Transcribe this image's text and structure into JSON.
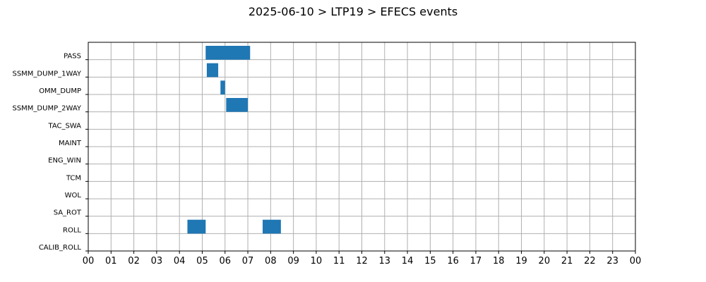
{
  "chart_data": {
    "type": "gantt",
    "title": "2025-06-10 > LTP19 > EFECS events",
    "categories": [
      "PASS",
      "SSMM_DUMP_1WAY",
      "OMM_DUMP",
      "SSMM_DUMP_2WAY",
      "TAC_SWA",
      "MAINT",
      "ENG_WIN",
      "TCM",
      "WOL",
      "SA_ROT",
      "ROLL",
      "CALIB_ROLL"
    ],
    "x_ticks": [
      "00",
      "01",
      "02",
      "03",
      "04",
      "05",
      "06",
      "07",
      "08",
      "09",
      "10",
      "11",
      "12",
      "13",
      "14",
      "15",
      "16",
      "17",
      "18",
      "19",
      "20",
      "21",
      "22",
      "23",
      "00"
    ],
    "xlim": [
      0,
      24
    ],
    "grid": true,
    "bar_color": "#1f77b4",
    "events": [
      {
        "category": "PASS",
        "start": 5.15,
        "end": 7.1
      },
      {
        "category": "SSMM_DUMP_1WAY",
        "start": 5.2,
        "end": 5.7
      },
      {
        "category": "OMM_DUMP",
        "start": 5.8,
        "end": 6.0
      },
      {
        "category": "SSMM_DUMP_2WAY",
        "start": 6.05,
        "end": 7.0
      },
      {
        "category": "ROLL",
        "start": 4.35,
        "end": 5.15
      },
      {
        "category": "ROLL",
        "start": 7.65,
        "end": 8.45
      }
    ]
  }
}
